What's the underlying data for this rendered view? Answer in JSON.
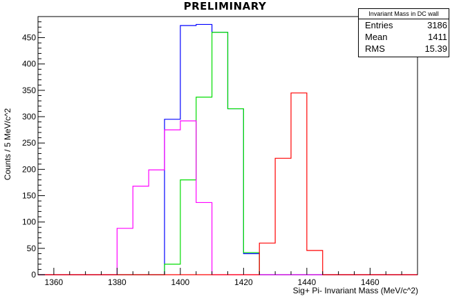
{
  "chart_data": {
    "type": "histogram",
    "title": "PRELIMINARY",
    "xlabel": "Sig+ Pi- Invariant Mass (MeV/c^2)",
    "ylabel": "Counts / 5 MeV/c^2",
    "xlim": [
      1355,
      1475
    ],
    "ylim": [
      0,
      490
    ],
    "bin_width": 5,
    "x_ticks": [
      1360,
      1380,
      1400,
      1420,
      1440,
      1460
    ],
    "y_ticks": [
      0,
      50,
      100,
      150,
      200,
      250,
      300,
      350,
      400,
      450
    ],
    "bin_edges": [
      1355,
      1360,
      1365,
      1370,
      1375,
      1380,
      1385,
      1390,
      1395,
      1400,
      1405,
      1410,
      1415,
      1420,
      1425,
      1430,
      1435,
      1440,
      1445,
      1450,
      1455,
      1460,
      1465,
      1470,
      1475
    ],
    "series": [
      {
        "color": "#0000ff",
        "values": [
          0,
          0,
          0,
          0,
          0,
          0,
          0,
          0,
          295,
          473,
          475,
          460,
          315,
          40,
          0,
          0,
          0,
          0,
          0,
          0,
          0,
          0,
          0,
          0
        ]
      },
      {
        "color": "#00dd00",
        "values": [
          0,
          0,
          0,
          0,
          0,
          0,
          0,
          0,
          20,
          180,
          337,
          460,
          315,
          42,
          0,
          0,
          0,
          0,
          0,
          0,
          0,
          0,
          0,
          0
        ]
      },
      {
        "color": "#ff00ff",
        "values": [
          0,
          0,
          0,
          0,
          0,
          88,
          168,
          199,
          275,
          292,
          137,
          0,
          0,
          0,
          0,
          0,
          0,
          0,
          0,
          0,
          0,
          0,
          0,
          0
        ]
      },
      {
        "color": "#ff0000",
        "values": [
          0,
          0,
          0,
          0,
          0,
          0,
          0,
          0,
          0,
          0,
          0,
          0,
          0,
          0,
          60,
          221,
          345,
          46,
          0,
          0,
          0,
          0,
          0,
          0
        ]
      }
    ]
  },
  "stats": {
    "title": "Invariant Mass in DC wall",
    "rows": [
      {
        "label": "Entries",
        "value": "3186"
      },
      {
        "label": "Mean",
        "value": "1411"
      },
      {
        "label": "RMS",
        "value": "15.39"
      }
    ]
  }
}
